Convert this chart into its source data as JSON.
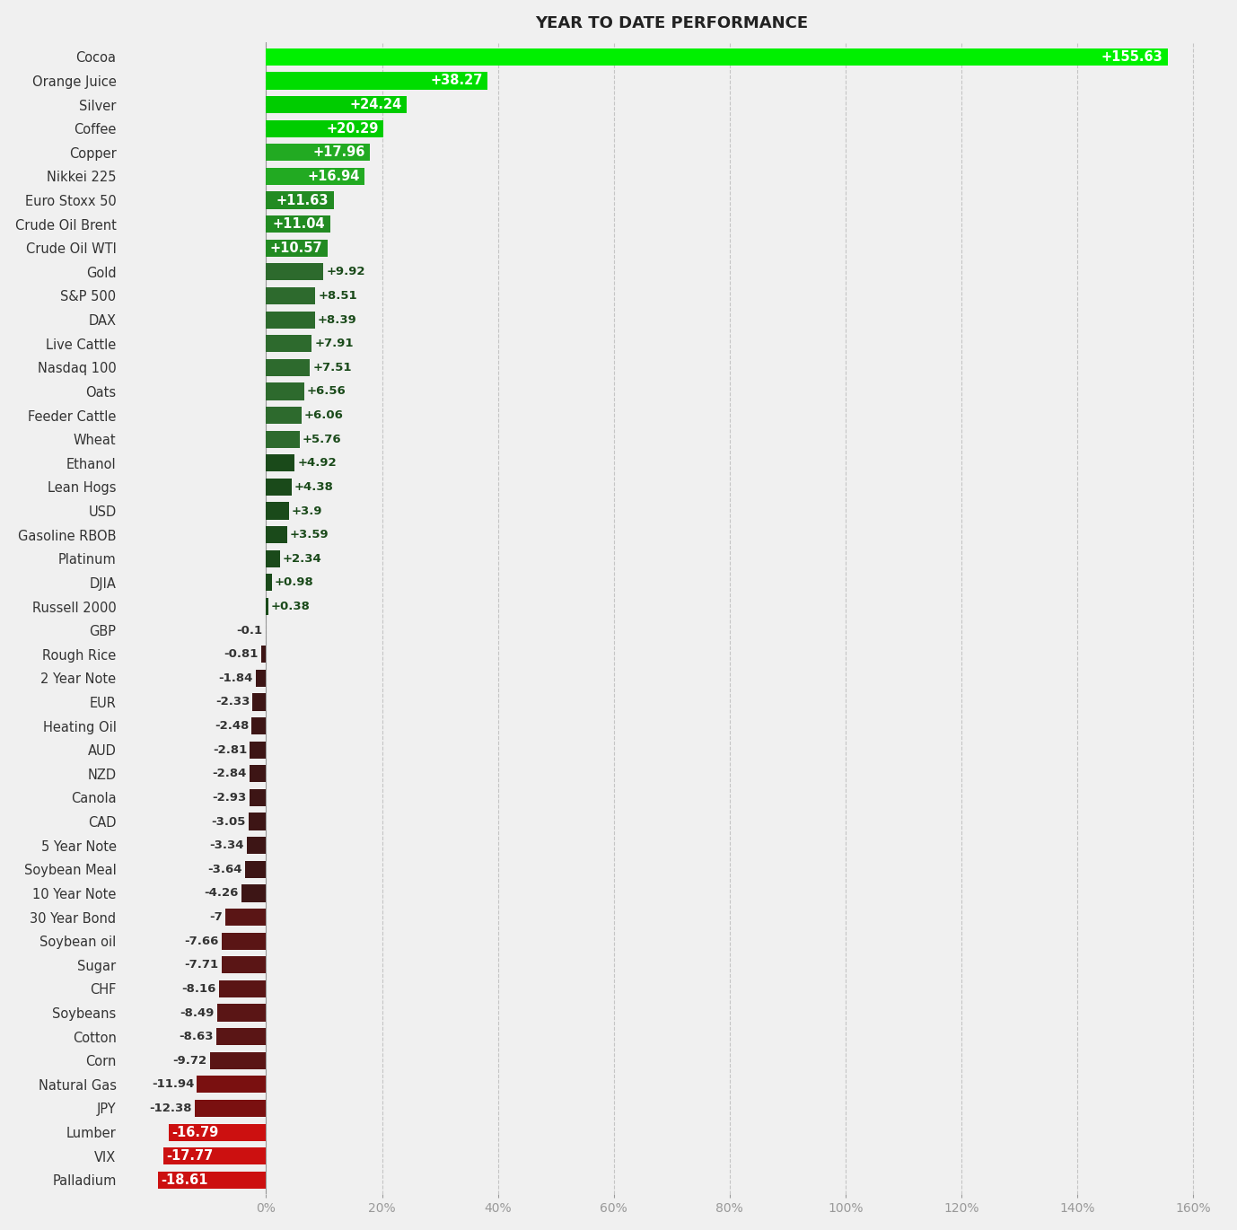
{
  "title": "YEAR TO DATE PERFORMANCE",
  "categories": [
    "Cocoa",
    "Orange Juice",
    "Silver",
    "Coffee",
    "Copper",
    "Nikkei 225",
    "Euro Stoxx 50",
    "Crude Oil Brent",
    "Crude Oil WTI",
    "Gold",
    "S&P 500",
    "DAX",
    "Live Cattle",
    "Nasdaq 100",
    "Oats",
    "Feeder Cattle",
    "Wheat",
    "Ethanol",
    "Lean Hogs",
    "USD",
    "Gasoline RBOB",
    "Platinum",
    "DJIA",
    "Russell 2000",
    "GBP",
    "Rough Rice",
    "2 Year Note",
    "EUR",
    "Heating Oil",
    "AUD",
    "NZD",
    "Canola",
    "CAD",
    "5 Year Note",
    "Soybean Meal",
    "10 Year Note",
    "30 Year Bond",
    "Soybean oil",
    "Sugar",
    "CHF",
    "Soybeans",
    "Cotton",
    "Corn",
    "Natural Gas",
    "JPY",
    "Lumber",
    "VIX",
    "Palladium"
  ],
  "values": [
    155.63,
    38.27,
    24.24,
    20.29,
    17.96,
    16.94,
    11.63,
    11.04,
    10.57,
    9.92,
    8.51,
    8.39,
    7.91,
    7.51,
    6.56,
    6.06,
    5.76,
    4.92,
    4.38,
    3.9,
    3.59,
    2.34,
    0.98,
    0.38,
    -0.1,
    -0.81,
    -1.84,
    -2.33,
    -2.48,
    -2.81,
    -2.84,
    -2.93,
    -3.05,
    -3.34,
    -3.64,
    -4.26,
    -7.0,
    -7.66,
    -7.71,
    -8.16,
    -8.49,
    -8.63,
    -9.72,
    -11.94,
    -12.38,
    -16.79,
    -17.77,
    -18.61
  ],
  "background_color": "#f0f0f0",
  "title_color": "#222222",
  "grid_color": "#bbbbbb",
  "xlim_min": -25,
  "xlim_max": 165,
  "bar_height": 0.72,
  "ytick_fontsize": 10.5,
  "xtick_fontsize": 10,
  "label_fontsize_large": 10.5,
  "label_fontsize_small": 9.5
}
